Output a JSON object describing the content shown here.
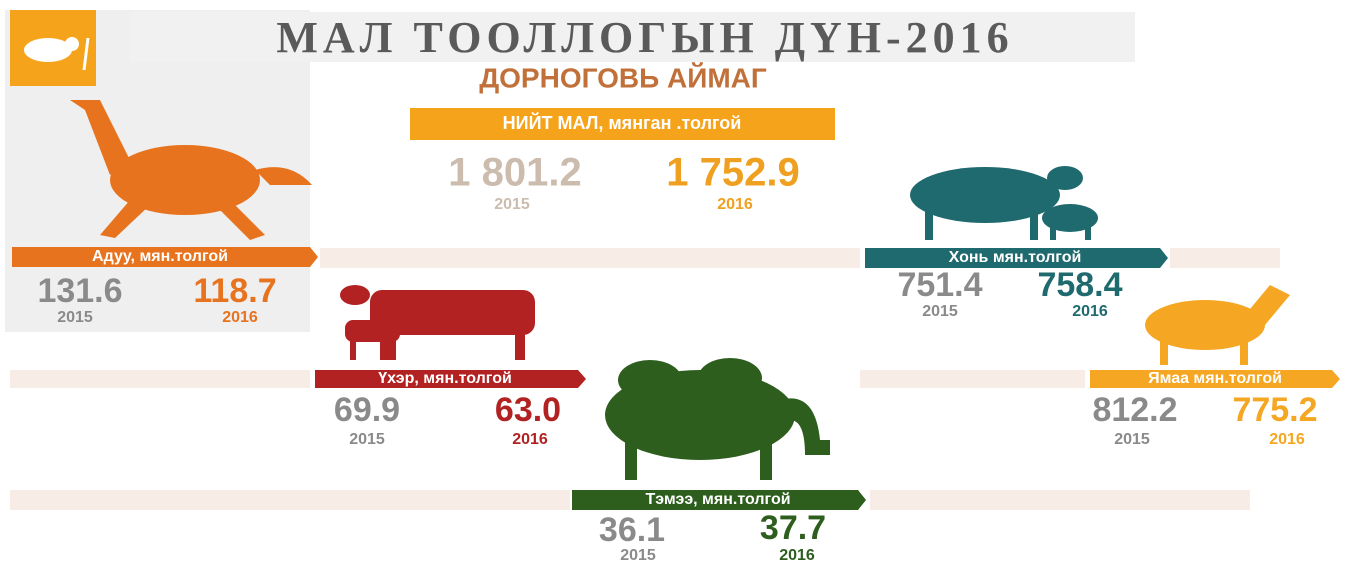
{
  "header": {
    "title": "МАЛ ТООЛЛОГЫН ДҮН-2016",
    "subtitle": "ДОРНОГОВЬ АЙМАГ"
  },
  "total": {
    "label": "НИЙТ МАЛ, мянган .толгой",
    "value_2015": "1 801.2",
    "year_2015": "2015",
    "value_2016": "1 752.9",
    "year_2016": "2016"
  },
  "animals": [
    {
      "label": "Адуу, мян.толгой",
      "value_2015": "131.6",
      "year_2015": "2015",
      "value_2016": "118.7",
      "year_2016": "2016"
    },
    {
      "label": "Хонь мян.толгой",
      "value_2015": "751.4",
      "year_2015": "2015",
      "value_2016": "758.4",
      "year_2016": "2016"
    },
    {
      "label": "Үхэр, мян.толгой",
      "value_2015": "69.9",
      "year_2015": "2015",
      "value_2016": "63.0",
      "year_2016": "2016"
    },
    {
      "label": "Ямаа мян.толгой",
      "value_2015": "812.2",
      "year_2015": "2015",
      "value_2016": "775.2",
      "year_2016": "2016"
    },
    {
      "label": "Тэмээ, мян.толгой",
      "value_2015": "36.1",
      "year_2015": "2015",
      "value_2016": "37.7",
      "year_2016": "2016"
    }
  ]
}
